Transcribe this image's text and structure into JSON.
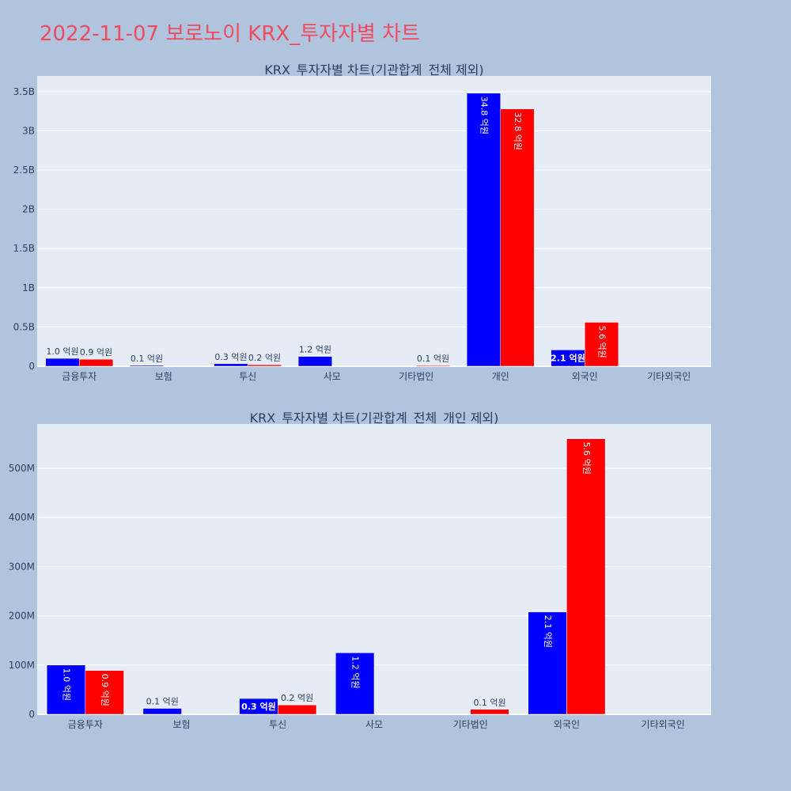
{
  "page_title": "2022-11-07 보로노이 KRX_투자자별 차트",
  "colors": {
    "buy": "#0000ff",
    "sell": "#ff0000",
    "plot_bg": "#e5ecf6",
    "page_bg": "#b0c4de"
  },
  "chart_data": [
    {
      "type": "bar",
      "title": "KRX_투자자별 차트(기관합계_전체 제외)",
      "categories": [
        "금융투자",
        "보험",
        "투신",
        "사모",
        "기타법인",
        "개인",
        "외국인",
        "기타외국인"
      ],
      "series": [
        {
          "values": [
            100000000,
            12000000,
            32000000,
            125000000,
            0,
            3480000000,
            208000000,
            0
          ],
          "labels": [
            "1.0 억원",
            "0.1 억원",
            "0.3 억원",
            "1.2 억원",
            "",
            "34.8 억원",
            "2.1 억원",
            ""
          ],
          "label_mode": [
            "outside",
            "outside",
            "outside",
            "outside",
            "none",
            "inside_rot",
            "inside",
            "none"
          ]
        },
        {
          "values": [
            89000000,
            0,
            19000000,
            0,
            10000000,
            3280000000,
            560000000,
            0
          ],
          "labels": [
            "0.9 억원",
            "",
            "0.2 억원",
            "",
            "0.1 억원",
            "32.8 억원",
            "5.6 억원",
            ""
          ],
          "label_mode": [
            "outside",
            "none",
            "outside",
            "none",
            "outside",
            "inside_rot",
            "inside_rot",
            "none"
          ]
        }
      ],
      "ylim": [
        0,
        3700000000
      ],
      "yticks": [
        0,
        500000000,
        1000000000,
        1500000000,
        2000000000,
        2500000000,
        3000000000,
        3500000000
      ],
      "ytick_labels": [
        "0",
        "0.5B",
        "1B",
        "1.5B",
        "2B",
        "2.5B",
        "3B",
        "3.5B"
      ],
      "grid": true
    },
    {
      "type": "bar",
      "title": "KRX_투자자별 차트(기관합계_전체_개인 제외)",
      "categories": [
        "금융투자",
        "보험",
        "투신",
        "사모",
        "기타법인",
        "외국인",
        "기타외국인"
      ],
      "series": [
        {
          "values": [
            100000000,
            12000000,
            32000000,
            125000000,
            0,
            208000000,
            0
          ],
          "labels": [
            "1.0 억원",
            "0.1 억원",
            "0.3 억원",
            "1.2 억원",
            "",
            "2.1 억원",
            ""
          ],
          "label_mode": [
            "inside_rot",
            "outside",
            "inside",
            "inside_rot",
            "none",
            "inside_rot",
            "none"
          ]
        },
        {
          "values": [
            89000000,
            0,
            19000000,
            0,
            10000000,
            560000000,
            0
          ],
          "labels": [
            "0.9 억원",
            "",
            "0.2 억원",
            "",
            "0.1 억원",
            "5.6 억원",
            ""
          ],
          "label_mode": [
            "inside_rot",
            "none",
            "outside",
            "none",
            "outside",
            "inside_rot",
            "none"
          ]
        }
      ],
      "ylim": [
        0,
        590000000
      ],
      "yticks": [
        0,
        100000000,
        200000000,
        300000000,
        400000000,
        500000000
      ],
      "ytick_labels": [
        "0",
        "100M",
        "200M",
        "300M",
        "400M",
        "500M"
      ],
      "grid": true
    }
  ]
}
